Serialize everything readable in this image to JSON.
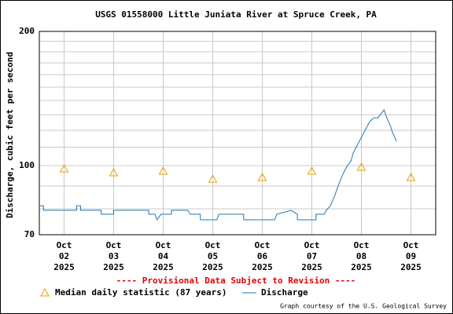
{
  "chart_data": {
    "type": "line",
    "log_y": true,
    "title": "USGS 01558000 Little Juniata River at Spruce Creek, PA",
    "ylabel": "Discharge, cubic feet per second",
    "note": "---- Provisional Data Subject to Revision ----",
    "credit": "Graph courtesy of the U.S. Geological Survey",
    "legend": "bottom",
    "grid": true,
    "xlim": [
      "2025-10-01T12:00",
      "2025-10-09T12:00"
    ],
    "xticks": [
      {
        "value": "2025-10-02T00:00",
        "label": "Oct 02 2025"
      },
      {
        "value": "2025-10-03T00:00",
        "label": "Oct 03 2025"
      },
      {
        "value": "2025-10-04T00:00",
        "label": "Oct 04 2025"
      },
      {
        "value": "2025-10-05T00:00",
        "label": "Oct 05 2025"
      },
      {
        "value": "2025-10-06T00:00",
        "label": "Oct 06 2025"
      },
      {
        "value": "2025-10-07T00:00",
        "label": "Oct 07 2025"
      },
      {
        "value": "2025-10-08T00:00",
        "label": "Oct 08 2025"
      },
      {
        "value": "2025-10-09T00:00",
        "label": "Oct 09 2025"
      }
    ],
    "ylim": [
      70,
      200
    ],
    "yticks": [
      70,
      100,
      200
    ],
    "yminor": [
      80,
      90,
      110,
      120,
      130,
      140,
      150,
      160,
      170,
      180,
      190
    ],
    "series": [
      {
        "name": "Median daily statistic (87 years)",
        "color": "#e69f00",
        "marker": "triangle",
        "x": [
          "2025-10-02T00:00",
          "2025-10-03T00:00",
          "2025-10-04T00:00",
          "2025-10-05T00:00",
          "2025-10-06T00:00",
          "2025-10-07T00:00",
          "2025-10-08T00:00",
          "2025-10-09T00:00"
        ],
        "values": [
          98.4,
          96.4,
          97.2,
          93.3,
          94.1,
          97.2,
          99.2,
          94.1
        ]
      },
      {
        "name": "Discharge",
        "color": "#1f77b4",
        "marker": "line",
        "x": [
          "2025-10-01T12:00",
          "2025-10-01T14:00",
          "2025-10-01T14:00",
          "2025-10-02T06:00",
          "2025-10-02T06:00",
          "2025-10-02T08:00",
          "2025-10-02T08:00",
          "2025-10-02T18:00",
          "2025-10-02T18:00",
          "2025-10-03T00:00",
          "2025-10-03T00:00",
          "2025-10-03T17:00",
          "2025-10-03T17:00",
          "2025-10-03T20:00",
          "2025-10-03T21:00",
          "2025-10-03T23:00",
          "2025-10-04T04:00",
          "2025-10-04T04:00",
          "2025-10-04T12:00",
          "2025-10-04T13:00",
          "2025-10-04T18:00",
          "2025-10-04T18:00",
          "2025-10-05T02:00",
          "2025-10-05T03:00",
          "2025-10-05T15:00",
          "2025-10-05T15:00",
          "2025-10-06T06:00",
          "2025-10-06T07:00",
          "2025-10-06T14:00",
          "2025-10-06T14:00",
          "2025-10-06T17:00",
          "2025-10-06T17:00",
          "2025-10-07T02:00",
          "2025-10-07T02:00",
          "2025-10-07T06:00",
          "2025-10-07T07:00",
          "2025-10-07T09:00",
          "2025-10-07T11:00",
          "2025-10-07T13:00",
          "2025-10-07T15:00",
          "2025-10-07T17:00",
          "2025-10-07T19:00",
          "2025-10-07T20:00",
          "2025-10-07T22:00",
          "2025-10-08T00:00",
          "2025-10-08T02:00",
          "2025-10-08T04:00",
          "2025-10-08T06:00",
          "2025-10-08T08:00",
          "2025-10-08T10:00",
          "2025-10-08T11:00",
          "2025-10-08T12:00",
          "2025-10-08T14:00",
          "2025-10-08T15:00",
          "2025-10-08T17:00"
        ],
        "values": [
          81.3,
          81.3,
          79.4,
          79.4,
          81.3,
          81.3,
          79.4,
          79.4,
          77.8,
          77.8,
          79.4,
          79.4,
          77.8,
          77.8,
          75.6,
          77.8,
          77.8,
          79.4,
          79.4,
          77.8,
          77.8,
          75.6,
          75.6,
          77.8,
          77.8,
          75.6,
          75.6,
          77.8,
          79.4,
          79.4,
          77.8,
          75.6,
          75.6,
          77.8,
          77.8,
          79.4,
          81.3,
          85.4,
          90.7,
          95.6,
          99.6,
          102.5,
          106.7,
          111.1,
          115.7,
          120.5,
          125.5,
          128.0,
          128.0,
          131.7,
          133.4,
          129.1,
          123.0,
          119.0,
          113.4
        ]
      }
    ]
  }
}
